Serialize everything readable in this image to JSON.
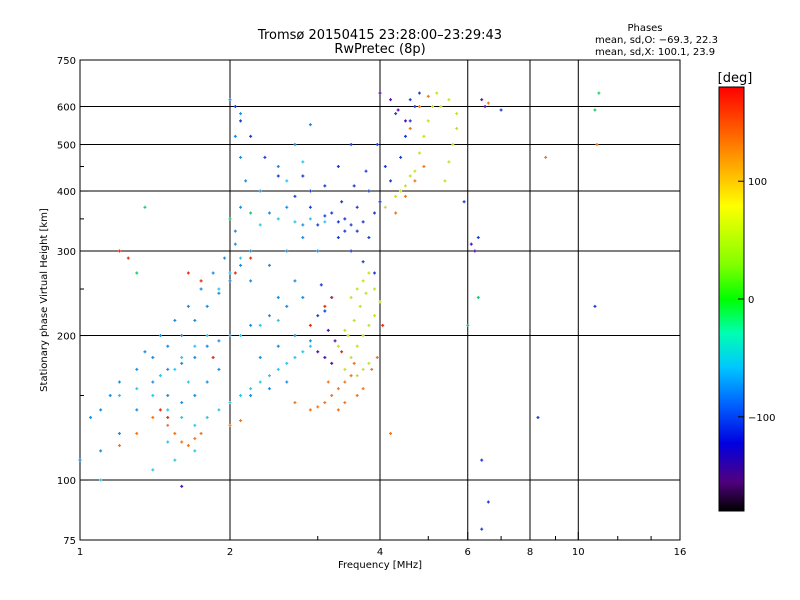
{
  "chart_data": {
    "type": "scatter",
    "title": "Tromsø 20150415 23:28:00–23:29:43",
    "subtitle": "RwPretec (8p)",
    "xlabel": "Frequency [MHz]",
    "ylabel": "Stationary phase Virtual Height [km]",
    "x_scale": "log",
    "y_scale": "log",
    "xlim": [
      1,
      16
    ],
    "ylim": [
      75,
      750
    ],
    "x_ticks": [
      1,
      2,
      4,
      6,
      8,
      10,
      16
    ],
    "x_tick_labels": [
      "1",
      "2",
      "4",
      "6",
      "8",
      "10",
      "16"
    ],
    "y_ticks": [
      75,
      100,
      200,
      300,
      400,
      500,
      600,
      750
    ],
    "y_tick_labels": [
      "75",
      "100",
      "200",
      "300",
      "400",
      "500",
      "600",
      "750"
    ],
    "grid": true,
    "phase_stats": {
      "heading": "Phases",
      "line_O": "mean, sd,O: −69.3, 22.3",
      "line_X": "mean, sd,X: 100.1, 23.9"
    },
    "colorbar": {
      "unit_label": "[deg]",
      "range": [
        -180,
        180
      ],
      "tick_values": [
        100,
        0,
        -100
      ],
      "tick_labels": [
        "100",
        "0",
        "−100"
      ],
      "colormap": "rainbow"
    },
    "series": [
      {
        "mode": "O",
        "phase": -100,
        "color": "#1c3fd8",
        "points": [
          [
            2.05,
            600
          ],
          [
            2.1,
            560
          ],
          [
            2.2,
            520
          ],
          [
            2.35,
            470
          ],
          [
            2.5,
            430
          ],
          [
            2.7,
            390
          ],
          [
            2.9,
            370
          ],
          [
            3.1,
            355
          ],
          [
            3.3,
            345
          ],
          [
            3.5,
            340
          ],
          [
            3.7,
            345
          ],
          [
            3.9,
            360
          ],
          [
            4.0,
            380
          ],
          [
            4.2,
            420
          ],
          [
            4.4,
            470
          ],
          [
            4.5,
            520
          ],
          [
            4.6,
            560
          ],
          [
            4.7,
            600
          ],
          [
            4.8,
            640
          ],
          [
            3.2,
            360
          ],
          [
            3.4,
            350
          ],
          [
            3.6,
            370
          ],
          [
            3.8,
            400
          ],
          [
            4.1,
            450
          ],
          [
            3.0,
            340
          ],
          [
            3.3,
            320
          ],
          [
            3.5,
            300
          ],
          [
            3.7,
            285
          ],
          [
            3.9,
            270
          ],
          [
            3.2,
            240
          ],
          [
            3.1,
            225
          ],
          [
            3.0,
            220
          ],
          [
            3.05,
            255
          ],
          [
            3.4,
            330
          ],
          [
            3.6,
            330
          ],
          [
            3.8,
            320
          ],
          [
            3.35,
            380
          ],
          [
            3.55,
            410
          ],
          [
            3.75,
            440
          ],
          [
            3.95,
            500
          ],
          [
            4.3,
            580
          ],
          [
            4.6,
            620
          ],
          [
            5.9,
            380
          ],
          [
            6.3,
            320
          ],
          [
            7.0,
            590
          ],
          [
            8.3,
            135
          ],
          [
            6.4,
            110
          ],
          [
            6.6,
            90
          ],
          [
            6.4,
            79
          ],
          [
            10.8,
            230
          ],
          [
            2.9,
            400
          ],
          [
            3.1,
            410
          ],
          [
            2.8,
            430
          ],
          [
            3.3,
            450
          ],
          [
            3.5,
            500
          ]
        ]
      },
      {
        "mode": "O",
        "phase": -60,
        "color": "#1f8fe0",
        "points": [
          [
            1.05,
            135
          ],
          [
            1.1,
            140
          ],
          [
            1.15,
            150
          ],
          [
            1.2,
            160
          ],
          [
            1.3,
            170
          ],
          [
            1.4,
            180
          ],
          [
            1.5,
            190
          ],
          [
            1.6,
            200
          ],
          [
            1.7,
            215
          ],
          [
            1.8,
            230
          ],
          [
            1.9,
            245
          ],
          [
            2.0,
            260
          ],
          [
            2.1,
            280
          ],
          [
            2.2,
            300
          ],
          [
            2.05,
            330
          ],
          [
            2.1,
            370
          ],
          [
            2.15,
            420
          ],
          [
            2.1,
            470
          ],
          [
            2.05,
            520
          ],
          [
            2.1,
            580
          ],
          [
            2.0,
            620
          ],
          [
            1.4,
            160
          ],
          [
            1.5,
            170
          ],
          [
            1.6,
            175
          ],
          [
            1.7,
            180
          ],
          [
            1.8,
            190
          ],
          [
            1.9,
            195
          ],
          [
            2.0,
            200
          ],
          [
            2.2,
            210
          ],
          [
            2.4,
            220
          ],
          [
            2.6,
            230
          ],
          [
            2.8,
            240
          ],
          [
            1.5,
            150
          ],
          [
            1.6,
            145
          ],
          [
            1.7,
            150
          ],
          [
            1.8,
            160
          ],
          [
            1.9,
            170
          ],
          [
            2.3,
            180
          ],
          [
            2.5,
            190
          ],
          [
            2.7,
            200
          ],
          [
            2.9,
            195
          ],
          [
            2.2,
            260
          ],
          [
            2.4,
            280
          ],
          [
            2.6,
            300
          ],
          [
            2.8,
            320
          ],
          [
            2.3,
            400
          ],
          [
            2.5,
            450
          ],
          [
            2.7,
            500
          ],
          [
            2.9,
            550
          ],
          [
            2.4,
            360
          ],
          [
            2.6,
            370
          ],
          [
            2.8,
            340
          ],
          [
            3.0,
            300
          ],
          [
            2.5,
            240
          ],
          [
            2.7,
            260
          ],
          [
            2.2,
            150
          ],
          [
            2.4,
            155
          ],
          [
            2.6,
            160
          ],
          [
            1.3,
            140
          ],
          [
            1.2,
            125
          ],
          [
            1.1,
            115
          ],
          [
            1.0,
            110
          ],
          [
            1.35,
            185
          ],
          [
            1.45,
            200
          ],
          [
            1.55,
            215
          ],
          [
            1.65,
            230
          ],
          [
            1.75,
            250
          ],
          [
            1.85,
            270
          ],
          [
            1.95,
            290
          ],
          [
            2.05,
            310
          ]
        ]
      },
      {
        "mode": "O",
        "phase": -30,
        "color": "#2fc8e8",
        "points": [
          [
            1.2,
            150
          ],
          [
            1.3,
            155
          ],
          [
            1.4,
            150
          ],
          [
            1.5,
            140
          ],
          [
            1.6,
            135
          ],
          [
            1.7,
            130
          ],
          [
            1.8,
            135
          ],
          [
            1.9,
            140
          ],
          [
            2.0,
            145
          ],
          [
            2.1,
            150
          ],
          [
            2.2,
            155
          ],
          [
            2.3,
            160
          ],
          [
            2.4,
            165
          ],
          [
            2.5,
            170
          ],
          [
            2.6,
            175
          ],
          [
            2.7,
            180
          ],
          [
            2.8,
            185
          ],
          [
            2.9,
            190
          ],
          [
            2.3,
            340
          ],
          [
            2.5,
            350
          ],
          [
            2.7,
            345
          ],
          [
            2.9,
            350
          ],
          [
            3.1,
            345
          ],
          [
            1.9,
            250
          ],
          [
            2.0,
            270
          ],
          [
            2.1,
            290
          ],
          [
            1.6,
            180
          ],
          [
            1.7,
            190
          ],
          [
            1.8,
            200
          ],
          [
            1.45,
            165
          ],
          [
            1.55,
            170
          ],
          [
            1.65,
            160
          ],
          [
            2.1,
            200
          ],
          [
            2.3,
            210
          ],
          [
            2.5,
            215
          ],
          [
            1.1,
            100
          ],
          [
            1.4,
            105
          ],
          [
            1.5,
            120
          ],
          [
            1.55,
            110
          ],
          [
            1.7,
            115
          ],
          [
            2.6,
            420
          ],
          [
            2.8,
            460
          ]
        ]
      },
      {
        "mode": "X",
        "phase": 60,
        "color": "#c8e020",
        "points": [
          [
            3.4,
            170
          ],
          [
            3.5,
            180
          ],
          [
            3.6,
            190
          ],
          [
            3.7,
            200
          ],
          [
            3.8,
            210
          ],
          [
            3.9,
            220
          ],
          [
            4.0,
            235
          ],
          [
            3.5,
            240
          ],
          [
            3.6,
            250
          ],
          [
            3.7,
            260
          ],
          [
            3.8,
            270
          ],
          [
            3.45,
            200
          ],
          [
            3.55,
            215
          ],
          [
            3.65,
            230
          ],
          [
            3.75,
            245
          ],
          [
            3.6,
            165
          ],
          [
            3.7,
            170
          ],
          [
            3.8,
            175
          ],
          [
            4.1,
            370
          ],
          [
            4.3,
            390
          ],
          [
            4.5,
            410
          ],
          [
            4.7,
            440
          ],
          [
            4.8,
            480
          ],
          [
            4.9,
            520
          ],
          [
            5.0,
            560
          ],
          [
            5.1,
            600
          ],
          [
            5.2,
            640
          ],
          [
            4.6,
            430
          ],
          [
            4.4,
            400
          ],
          [
            5.3,
            600
          ],
          [
            5.5,
            620
          ],
          [
            5.7,
            580
          ],
          [
            5.6,
            500
          ],
          [
            5.5,
            460
          ],
          [
            5.4,
            420
          ],
          [
            5.7,
            540
          ],
          [
            3.3,
            190
          ],
          [
            3.4,
            205
          ],
          [
            3.9,
            250
          ]
        ]
      },
      {
        "mode": "X",
        "phase": 130,
        "color": "#f07820",
        "points": [
          [
            1.55,
            125
          ],
          [
            1.6,
            120
          ],
          [
            1.65,
            118
          ],
          [
            1.7,
            122
          ],
          [
            1.75,
            125
          ],
          [
            2.0,
            130
          ],
          [
            2.1,
            133
          ],
          [
            2.9,
            140
          ],
          [
            3.0,
            142
          ],
          [
            3.1,
            145
          ],
          [
            3.2,
            150
          ],
          [
            3.3,
            155
          ],
          [
            3.4,
            160
          ],
          [
            3.5,
            165
          ],
          [
            3.3,
            140
          ],
          [
            3.4,
            145
          ],
          [
            3.6,
            150
          ],
          [
            3.7,
            155
          ],
          [
            3.85,
            170
          ],
          [
            3.95,
            180
          ],
          [
            4.3,
            360
          ],
          [
            4.5,
            390
          ],
          [
            4.7,
            420
          ],
          [
            4.9,
            450
          ],
          [
            4.6,
            540
          ],
          [
            4.8,
            600
          ],
          [
            5.0,
            630
          ],
          [
            6.6,
            610
          ],
          [
            8.6,
            470
          ],
          [
            10.9,
            500
          ],
          [
            1.4,
            135
          ],
          [
            1.3,
            125
          ],
          [
            1.5,
            130
          ],
          [
            4.2,
            125
          ],
          [
            2.7,
            145
          ],
          [
            3.15,
            160
          ],
          [
            3.55,
            175
          ],
          [
            1.2,
            118
          ]
        ]
      },
      {
        "mode": "X",
        "phase": 160,
        "color": "#e83010",
        "points": [
          [
            1.2,
            300
          ],
          [
            1.25,
            290
          ],
          [
            1.65,
            270
          ],
          [
            1.75,
            260
          ],
          [
            2.05,
            270
          ],
          [
            2.2,
            290
          ],
          [
            2.9,
            210
          ],
          [
            3.1,
            230
          ],
          [
            3.2,
            240
          ],
          [
            1.45,
            140
          ],
          [
            1.5,
            135
          ],
          [
            1.85,
            180
          ],
          [
            4.05,
            210
          ],
          [
            3.35,
            185
          ]
        ]
      },
      {
        "mode": "O",
        "phase": -140,
        "color": "#5a10b0",
        "points": [
          [
            3.0,
            185
          ],
          [
            3.1,
            180
          ],
          [
            3.2,
            175
          ],
          [
            4.0,
            640
          ],
          [
            4.2,
            620
          ],
          [
            4.35,
            590
          ],
          [
            4.5,
            560
          ],
          [
            1.6,
            97
          ],
          [
            6.4,
            620
          ],
          [
            6.5,
            600
          ],
          [
            6.1,
            310
          ],
          [
            6.2,
            300
          ],
          [
            3.25,
            195
          ],
          [
            3.15,
            205
          ]
        ]
      },
      {
        "mode": "O",
        "phase": 0,
        "color": "#22c870",
        "points": [
          [
            1.3,
            270
          ],
          [
            1.35,
            370
          ],
          [
            2.0,
            350
          ],
          [
            2.2,
            360
          ],
          [
            6.0,
            210
          ],
          [
            6.3,
            240
          ],
          [
            10.8,
            590
          ],
          [
            11.0,
            640
          ]
        ]
      }
    ]
  }
}
